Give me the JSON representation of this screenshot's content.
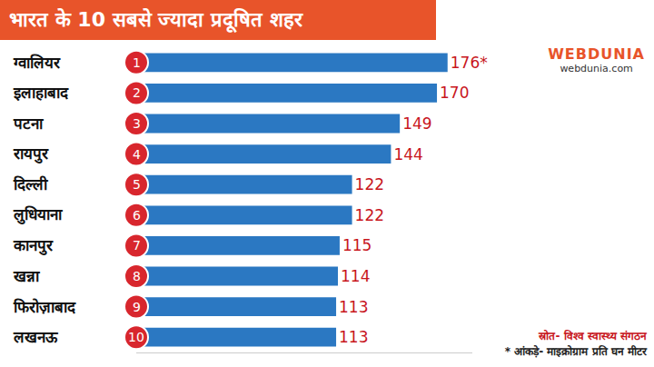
{
  "chart_data": {
    "type": "bar",
    "orientation": "horizontal",
    "title": "भारत के 10 सबसे ज्यादा प्रदूषित शहर",
    "categories": [
      "ग्वालियर",
      "इलाहाबाद",
      "पटना",
      "रायपुर",
      "दिल्ली",
      "लुधियाना",
      "कानपुर",
      "खन्ना",
      "फिरोज़ाबाद",
      "लखनऊ"
    ],
    "ranks": [
      1,
      2,
      3,
      4,
      5,
      6,
      7,
      8,
      9,
      10
    ],
    "values": [
      176,
      170,
      149,
      144,
      122,
      122,
      115,
      114,
      113,
      113
    ],
    "value_labels": [
      "176*",
      "170",
      "149",
      "144",
      "122",
      "122",
      "115",
      "114",
      "113",
      "113"
    ],
    "data_labels": true,
    "color": "#2b78c2",
    "xlim": [
      0,
      190
    ],
    "tick_labels": false,
    "grid": false,
    "source": "स्रोत- विश्व स्वास्थ्य संगठन",
    "note": "* आंकड़े- माइक्रोग्राम प्रति घन मीटर",
    "brand": "WEBDUNIA",
    "website": "webdunia.com"
  }
}
